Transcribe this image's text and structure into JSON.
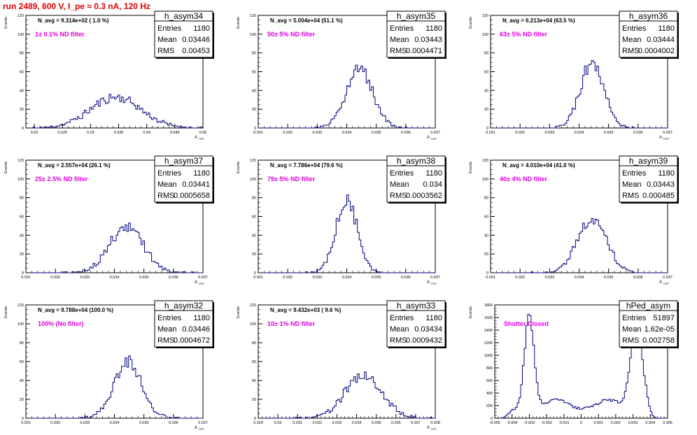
{
  "header": {
    "title": "run 2489,   600 V, I_pe ≈ 0.3 nA, 120 Hz"
  },
  "colors": {
    "hist": "#000080",
    "annotation": "#e000e0",
    "title": "#e00000",
    "axis": "#000000"
  },
  "chart_data": [
    {
      "type": "histogram",
      "name": "h_asym34",
      "navg": "N_avg = 9.314e+02 ( 1.0 %)",
      "filter": "1± 0.1% ND filter",
      "stats": {
        "entries": "1180",
        "mean": "0.03446",
        "rms": "0.00453"
      },
      "ylabel": "Events",
      "xlabel": "A",
      "xlabel_sub": "LED",
      "xlim": [
        0.0185,
        0.05
      ],
      "ylim": [
        0,
        120
      ],
      "yticks": [
        0,
        20,
        40,
        60,
        80,
        100,
        120
      ],
      "xticks": [
        0.02,
        0.025,
        0.03,
        0.035,
        0.04,
        0.045,
        0.05
      ],
      "xtick_labels": [
        "0.02",
        "0.025",
        "0.03",
        "0.035",
        "0.04",
        "0.045",
        "0.05"
      ],
      "dist": {
        "type": "gauss",
        "mu": 0.0345,
        "sigma": 0.0045,
        "n": 1180,
        "bins": 100
      }
    },
    {
      "type": "histogram",
      "name": "h_asym35",
      "navg": "N_avg = 5.004e+04 (51.1 %)",
      "filter": "50± 5% ND filter",
      "stats": {
        "entries": "1180",
        "mean": "0.03443",
        "rms": "0.0004471"
      },
      "ylabel": "Events",
      "xlabel": "A",
      "xlabel_sub": "LED",
      "xlim": [
        0.031,
        0.037
      ],
      "ylim": [
        0,
        120
      ],
      "yticks": [
        0,
        20,
        40,
        60,
        80,
        100,
        120
      ],
      "xticks": [
        0.031,
        0.032,
        0.033,
        0.034,
        0.035,
        0.036,
        0.037
      ],
      "xtick_labels": [
        "0.031",
        "0.032",
        "0.033",
        "0.034",
        "0.035",
        "0.036",
        "0.037"
      ],
      "dist": {
        "type": "gauss",
        "mu": 0.03443,
        "sigma": 0.00045,
        "n": 1180,
        "bins": 100
      }
    },
    {
      "type": "histogram",
      "name": "h_asym36",
      "navg": "N_avg = 6.213e+04 (63.5 %)",
      "filter": "63± 5% ND filter",
      "stats": {
        "entries": "1180",
        "mean": "0.03444",
        "rms": "0.0004002"
      },
      "ylabel": "Events",
      "xlabel": "A",
      "xlabel_sub": "LED",
      "xlim": [
        0.031,
        0.037
      ],
      "ylim": [
        0,
        120
      ],
      "yticks": [
        0,
        20,
        40,
        60,
        80,
        100,
        120
      ],
      "xticks": [
        0.031,
        0.032,
        0.033,
        0.034,
        0.035,
        0.036,
        0.037
      ],
      "xtick_labels": [
        "0.031",
        "0.032",
        "0.033",
        "0.034",
        "0.035",
        "0.036",
        "0.037"
      ],
      "dist": {
        "type": "gauss",
        "mu": 0.03444,
        "sigma": 0.0004,
        "n": 1180,
        "bins": 100
      }
    },
    {
      "type": "histogram",
      "name": "h_asym37",
      "navg": "N_avg = 2.557e+04 (26.1 %)",
      "filter": "25± 2.5% ND filter",
      "stats": {
        "entries": "1180",
        "mean": "0.03441",
        "rms": "0.0005658"
      },
      "ylabel": "Events",
      "xlabel": "A",
      "xlabel_sub": "LED",
      "xlim": [
        0.031,
        0.037
      ],
      "ylim": [
        0,
        120
      ],
      "yticks": [
        0,
        20,
        40,
        60,
        80,
        100,
        120
      ],
      "xticks": [
        0.031,
        0.032,
        0.033,
        0.034,
        0.035,
        0.036,
        0.037
      ],
      "xtick_labels": [
        "0.031",
        "0.032",
        "0.033",
        "0.034",
        "0.035",
        "0.036",
        "0.037"
      ],
      "dist": {
        "type": "gauss",
        "mu": 0.03441,
        "sigma": 0.00057,
        "n": 1180,
        "bins": 100
      }
    },
    {
      "type": "histogram",
      "name": "h_asym38",
      "navg": "N_avg = 7.786e+04 (79.6 %)",
      "filter": "79± 5% ND filter",
      "stats": {
        "entries": "1180",
        "mean": "0.034",
        "rms": "0.0003562"
      },
      "ylabel": "Events",
      "xlabel": "A",
      "xlabel_sub": "LED",
      "xlim": [
        0.031,
        0.037
      ],
      "ylim": [
        0,
        120
      ],
      "yticks": [
        0,
        20,
        40,
        60,
        80,
        100,
        120
      ],
      "xticks": [
        0.031,
        0.032,
        0.033,
        0.034,
        0.035,
        0.036,
        0.037
      ],
      "xtick_labels": [
        "0.031",
        "0.032",
        "0.033",
        "0.034",
        "0.035",
        "0.036",
        "0.037"
      ],
      "dist": {
        "type": "gauss",
        "mu": 0.034,
        "sigma": 0.00036,
        "n": 1180,
        "bins": 100
      }
    },
    {
      "type": "histogram",
      "name": "h_asym39",
      "navg": "N_avg = 4.010e+04 (41.0 %)",
      "filter": "40± 4% ND filter",
      "stats": {
        "entries": "1180",
        "mean": "0.03443",
        "rms": "0.000485"
      },
      "ylabel": "Events",
      "xlabel": "A",
      "xlabel_sub": "LED",
      "xlim": [
        0.031,
        0.037
      ],
      "ylim": [
        0,
        120
      ],
      "yticks": [
        0,
        20,
        40,
        60,
        80,
        100,
        120
      ],
      "xticks": [
        0.031,
        0.032,
        0.033,
        0.034,
        0.035,
        0.036,
        0.037
      ],
      "xtick_labels": [
        "0.031",
        "0.032",
        "0.033",
        "0.034",
        "0.035",
        "0.036",
        "0.037"
      ],
      "dist": {
        "type": "gauss",
        "mu": 0.03443,
        "sigma": 0.00049,
        "n": 1180,
        "bins": 100
      }
    },
    {
      "type": "histogram",
      "name": "h_asym32",
      "navg": "N_avg = 9.788e+04 (100.0 %)",
      "filter": "100% (No filter)",
      "stats": {
        "entries": "1180",
        "mean": "0.03446",
        "rms": "0.0004672"
      },
      "ylabel": "Events",
      "xlabel": "A",
      "xlabel_sub": "LED",
      "xlim": [
        0.031,
        0.037
      ],
      "ylim": [
        0,
        120
      ],
      "yticks": [
        0,
        20,
        40,
        60,
        80,
        100,
        120
      ],
      "xticks": [
        0.031,
        0.032,
        0.033,
        0.034,
        0.035,
        0.036,
        0.037
      ],
      "xtick_labels": [
        "0.031",
        "0.032",
        "0.033",
        "0.034",
        "0.035",
        "0.036",
        "0.037"
      ],
      "dist": {
        "type": "gauss",
        "mu": 0.03446,
        "sigma": 0.00047,
        "n": 1180,
        "bins": 100
      }
    },
    {
      "type": "histogram",
      "name": "h_asym33",
      "navg": "N_avg = 9.432e+03 ( 9.6 %)",
      "filter": "10± 1% ND filter",
      "stats": {
        "entries": "1180",
        "mean": "0.03434",
        "rms": "0.0009432"
      },
      "ylabel": "Events",
      "xlabel": "A",
      "xlabel_sub": "LED",
      "xlim": [
        0.029,
        0.038
      ],
      "ylim": [
        0,
        120
      ],
      "yticks": [
        0,
        20,
        40,
        60,
        80,
        100,
        120
      ],
      "xticks": [
        0.029,
        0.03,
        0.031,
        0.032,
        0.033,
        0.034,
        0.035,
        0.036,
        0.037,
        0.038
      ],
      "xtick_labels": [
        "0.029",
        "0.03",
        "0.031",
        "0.032",
        "0.033",
        "0.034",
        "0.035",
        "0.036",
        "0.037",
        "0.038"
      ],
      "dist": {
        "type": "gauss",
        "mu": 0.03434,
        "sigma": 0.00094,
        "n": 1180,
        "bins": 100
      }
    },
    {
      "type": "histogram",
      "name": "hPed_asym",
      "navg": "",
      "filter": "Shutter Closed",
      "stats": {
        "entries": "51897",
        "mean": "1.62e-05",
        "rms": "0.002758"
      },
      "ylabel": "Events",
      "xlabel": "",
      "xlabel_sub": "",
      "xlim": [
        -0.005,
        0.005
      ],
      "ylim": [
        0,
        1800
      ],
      "yticks": [
        0,
        200,
        400,
        600,
        800,
        1000,
        1200,
        1400,
        1600,
        1800
      ],
      "xticks": [
        -0.005,
        -0.004,
        -0.003,
        -0.002,
        -0.001,
        0,
        0.001,
        0.002,
        0.003,
        0.004,
        0.005
      ],
      "xtick_labels": [
        "-0.005",
        "-0.004",
        "-0.003",
        "-0.002",
        "-0.001",
        "0",
        "0.001",
        "0.002",
        "0.003",
        "0.004",
        "0.005"
      ],
      "dist": {
        "type": "ped",
        "n": 51897,
        "bins": 100
      }
    }
  ]
}
